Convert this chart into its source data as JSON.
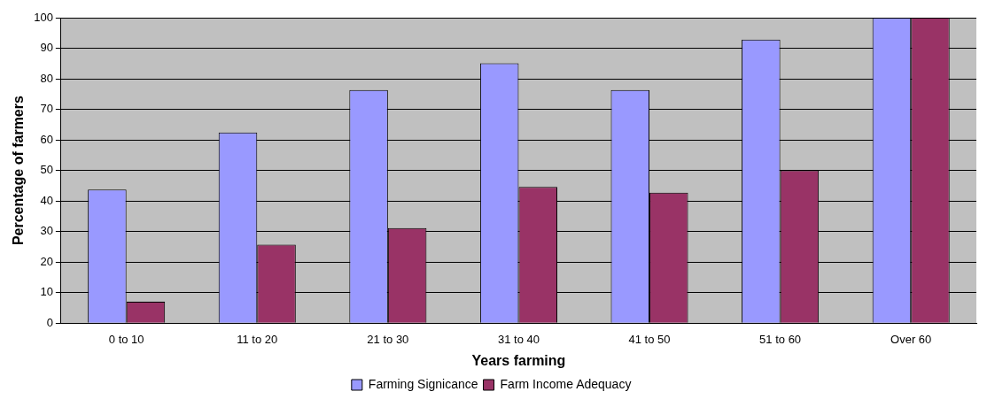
{
  "chart_data": {
    "type": "bar",
    "xlabel": "Years farming",
    "ylabel": "Percentage of farmers",
    "categories": [
      "0 to 10",
      "11 to 20",
      "21 to 30",
      "31 to 40",
      "41 to 50",
      "51 to 60",
      "Over 60"
    ],
    "series": [
      {
        "name": "Farming Signicance",
        "color": "#9999ff",
        "values": [
          43.7,
          62.4,
          76.3,
          85.1,
          76.3,
          92.8,
          100
        ]
      },
      {
        "name": "Farm Income Adequacy",
        "color": "#993366",
        "values": [
          7.0,
          25.7,
          31.1,
          44.6,
          42.7,
          50,
          100
        ]
      }
    ],
    "ylim": [
      0,
      100
    ],
    "yticks": [
      0,
      10,
      20,
      30,
      40,
      50,
      60,
      70,
      80,
      90,
      100
    ],
    "grid": "y",
    "legend": "bottom"
  }
}
